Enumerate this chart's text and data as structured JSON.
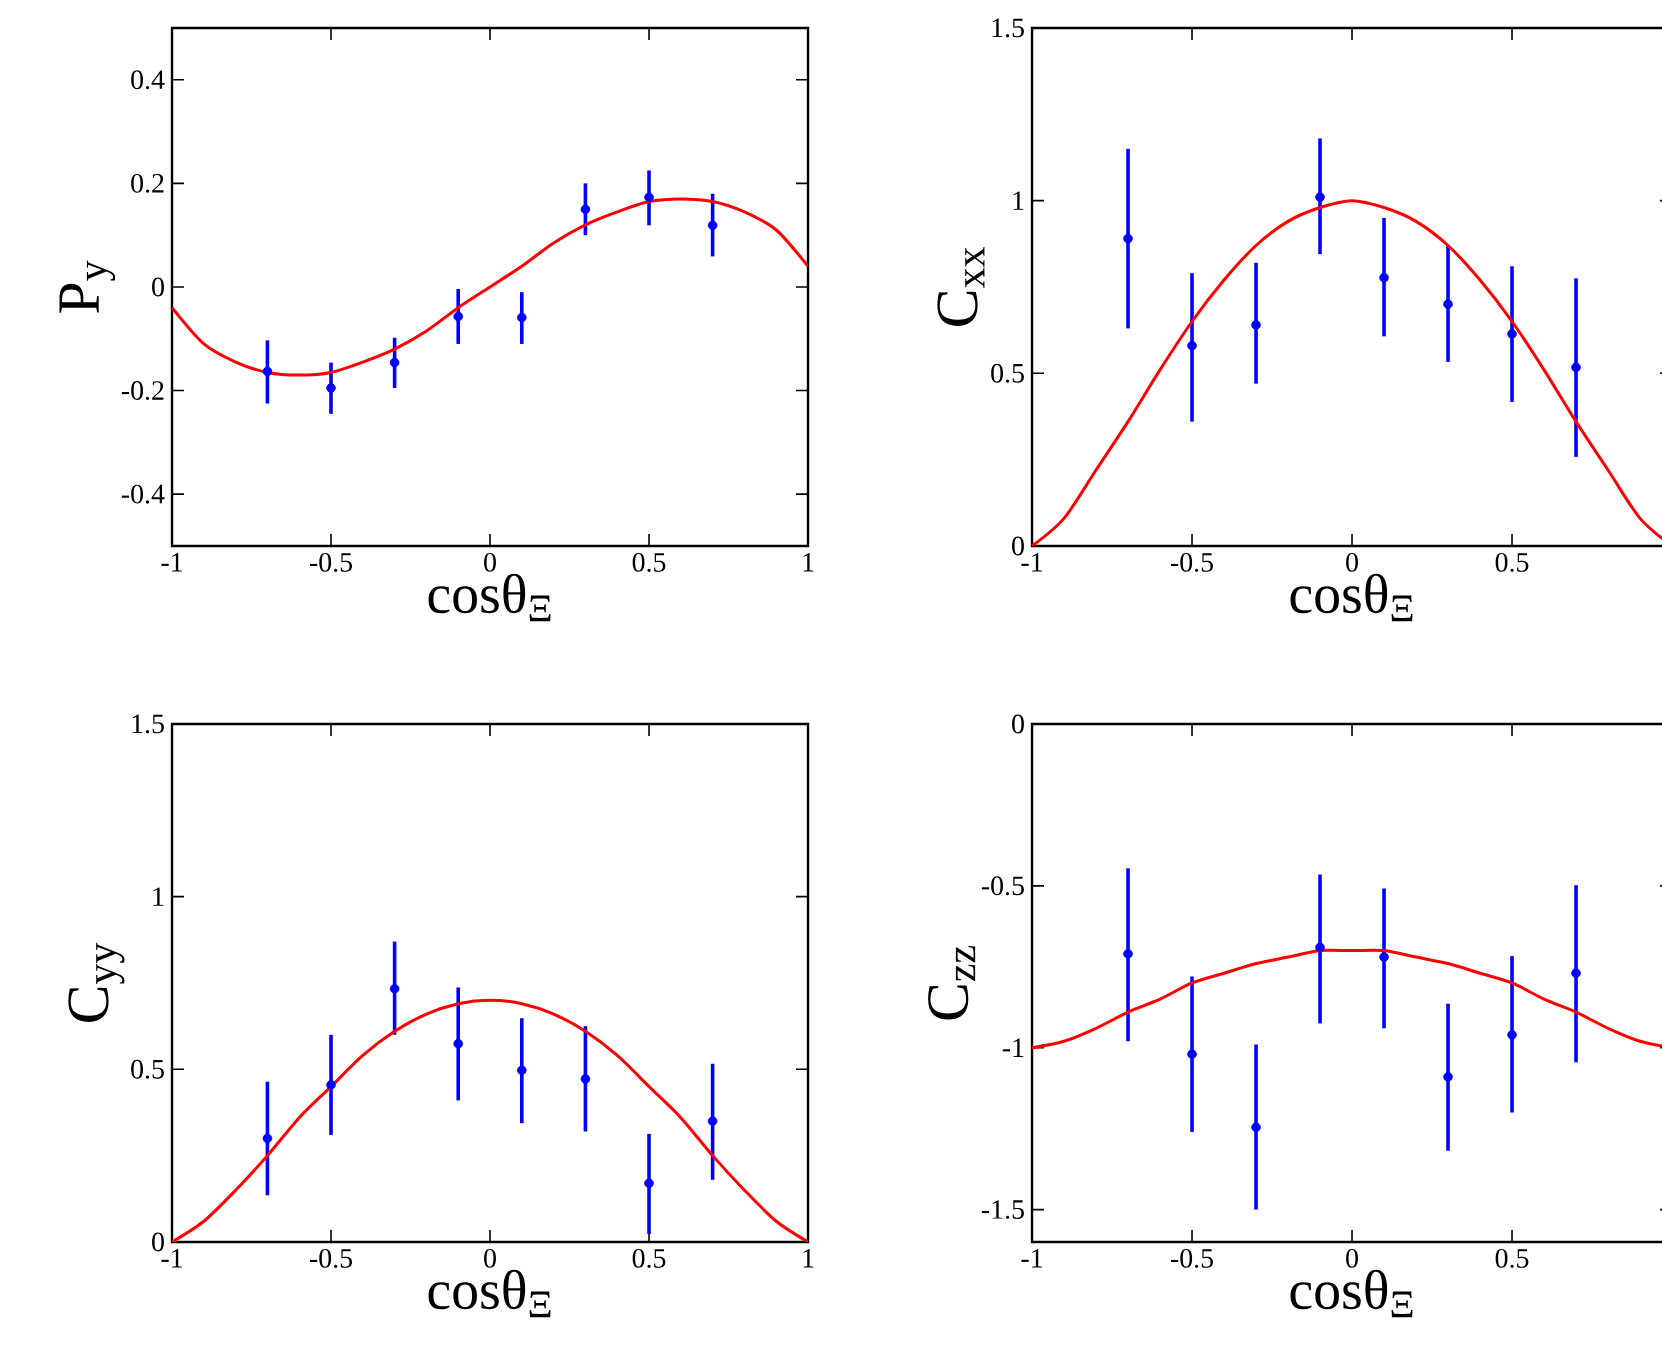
{
  "chart_data": [
    {
      "type": "scatter",
      "xlabel": "cosθ$_{Ξ}$",
      "ylabel": "P$_{y}$",
      "xlim": [
        -1,
        1
      ],
      "ylim": [
        -0.5,
        0.5
      ],
      "xticks": [
        -1,
        -0.5,
        0,
        0.5,
        1
      ],
      "yticks": [
        -0.4,
        -0.2,
        0,
        0.2,
        0.4
      ],
      "series": [
        {
          "color": "#0000ff",
          "marker": "circle",
          "x": [
            -0.7,
            -0.5,
            -0.3,
            -0.1,
            0.1,
            0.3,
            0.5,
            0.7
          ],
          "values": [
            -0.163,
            -0.195,
            -0.146,
            -0.057,
            -0.059,
            0.15,
            0.173,
            0.119
          ],
          "errors": [
            [
              -0.225,
              -0.103
            ],
            [
              -0.245,
              -0.146
            ],
            [
              -0.195,
              -0.098
            ],
            [
              -0.11,
              -0.004
            ],
            [
              -0.11,
              -0.01
            ],
            [
              0.1,
              0.2
            ],
            [
              0.119,
              0.225
            ],
            [
              0.059,
              0.18
            ]
          ]
        },
        {
          "type": "line",
          "color": "#ff0000",
          "marker": "none",
          "x": [
            -1,
            -0.9,
            -0.8,
            -0.7,
            -0.6,
            -0.5,
            -0.4,
            -0.3,
            -0.2,
            -0.1,
            0,
            0.1,
            0.2,
            0.3,
            0.4,
            0.5,
            0.6,
            0.7,
            0.8,
            0.9,
            1
          ],
          "values": [
            -0.04,
            -0.11,
            -0.145,
            -0.165,
            -0.17,
            -0.165,
            -0.145,
            -0.12,
            -0.085,
            -0.04,
            0,
            0.04,
            0.085,
            0.12,
            0.145,
            0.165,
            0.17,
            0.165,
            0.145,
            0.11,
            0.04
          ]
        }
      ]
    },
    {
      "type": "scatter",
      "xlabel": "cosθ$_{Ξ}$",
      "ylabel": "C$_{xx}$",
      "xlim": [
        -1,
        1
      ],
      "ylim": [
        0,
        1.5
      ],
      "xticks": [
        -1,
        -0.5,
        0,
        0.5
      ],
      "yticks": [
        0,
        0.5,
        1,
        1.5
      ],
      "series": [
        {
          "color": "#0000ff",
          "marker": "circle",
          "x": [
            -0.7,
            -0.5,
            -0.3,
            -0.1,
            0.1,
            0.3,
            0.5,
            0.7
          ],
          "values": [
            0.89,
            0.58,
            0.64,
            1.01,
            0.777,
            0.7,
            0.614,
            0.517
          ],
          "errors": [
            [
              0.63,
              1.15
            ],
            [
              0.36,
              0.79
            ],
            [
              0.47,
              0.82
            ],
            [
              0.845,
              1.18
            ],
            [
              0.607,
              0.95
            ],
            [
              0.533,
              0.87
            ],
            [
              0.417,
              0.81
            ],
            [
              0.258,
              0.775
            ]
          ]
        },
        {
          "type": "line",
          "color": "#ff0000",
          "marker": "none",
          "x": [
            -1,
            -0.9,
            -0.8,
            -0.7,
            -0.6,
            -0.5,
            -0.4,
            -0.3,
            -0.2,
            -0.1,
            0,
            0.1,
            0.2,
            0.3,
            0.4,
            0.5,
            0.6,
            0.7,
            0.8,
            0.9,
            1
          ],
          "values": [
            0,
            0.08,
            0.22,
            0.36,
            0.51,
            0.65,
            0.77,
            0.87,
            0.94,
            0.98,
            1,
            0.98,
            0.94,
            0.87,
            0.77,
            0.65,
            0.51,
            0.36,
            0.22,
            0.08,
            0
          ]
        }
      ]
    },
    {
      "type": "scatter",
      "xlabel": "cosθ$_{Ξ}$",
      "ylabel": "C$_{yy}$",
      "xlim": [
        -1,
        1
      ],
      "ylim": [
        0,
        1.5
      ],
      "xticks": [
        -1,
        -0.5,
        0,
        0.5,
        1
      ],
      "yticks": [
        0,
        0.5,
        1,
        1.5
      ],
      "series": [
        {
          "color": "#0000ff",
          "marker": "circle",
          "x": [
            -0.7,
            -0.5,
            -0.3,
            -0.1,
            0.1,
            0.3,
            0.5,
            0.7
          ],
          "values": [
            0.3,
            0.455,
            0.733,
            0.574,
            0.497,
            0.472,
            0.17,
            0.35
          ],
          "errors": [
            [
              0.135,
              0.464
            ],
            [
              0.31,
              0.6
            ],
            [
              0.6,
              0.87
            ],
            [
              0.41,
              0.737
            ],
            [
              0.344,
              0.648
            ],
            [
              0.32,
              0.625
            ],
            [
              0.023,
              0.313
            ],
            [
              0.18,
              0.516
            ]
          ]
        },
        {
          "type": "line",
          "color": "#ff0000",
          "marker": "none",
          "x": [
            -1,
            -0.9,
            -0.8,
            -0.7,
            -0.6,
            -0.5,
            -0.4,
            -0.3,
            -0.2,
            -0.1,
            0,
            0.1,
            0.2,
            0.3,
            0.4,
            0.5,
            0.6,
            0.7,
            0.8,
            0.9,
            1
          ],
          "values": [
            0,
            0.06,
            0.15,
            0.25,
            0.36,
            0.45,
            0.54,
            0.61,
            0.66,
            0.69,
            0.7,
            0.69,
            0.66,
            0.61,
            0.54,
            0.45,
            0.36,
            0.25,
            0.15,
            0.06,
            0
          ]
        }
      ]
    },
    {
      "type": "scatter",
      "xlabel": "cosθ$_{Ξ}$",
      "ylabel": "C$_{zz}$",
      "xlim": [
        -1,
        1
      ],
      "ylim": [
        -1.6,
        0
      ],
      "xticks": [
        -1,
        -0.5,
        0,
        0.5
      ],
      "yticks": [
        -1.5,
        -1,
        -0.5,
        0
      ],
      "series": [
        {
          "color": "#0000ff",
          "marker": "circle",
          "x": [
            -0.7,
            -0.5,
            -0.3,
            -0.1,
            0.1,
            0.3,
            0.5,
            0.7
          ],
          "values": [
            -0.71,
            -1.02,
            -1.246,
            -0.69,
            -0.72,
            -1.09,
            -0.96,
            -0.77
          ],
          "errors": [
            [
              -0.98,
              -0.446
            ],
            [
              -1.26,
              -0.78
            ],
            [
              -1.5,
              -0.99
            ],
            [
              -0.925,
              -0.465
            ],
            [
              -0.94,
              -0.508
            ],
            [
              -1.318,
              -0.864
            ],
            [
              -1.2,
              -0.717
            ],
            [
              -1.045,
              -0.498
            ]
          ]
        },
        {
          "type": "line",
          "color": "#ff0000",
          "marker": "none",
          "x": [
            -1,
            -0.9,
            -0.8,
            -0.7,
            -0.6,
            -0.5,
            -0.4,
            -0.3,
            -0.2,
            -0.1,
            0,
            0.1,
            0.2,
            0.3,
            0.4,
            0.5,
            0.6,
            0.7,
            0.8,
            0.9,
            1
          ],
          "values": [
            -1,
            -0.98,
            -0.94,
            -0.89,
            -0.85,
            -0.8,
            -0.77,
            -0.74,
            -0.72,
            -0.7,
            -0.7,
            -0.7,
            -0.72,
            -0.74,
            -0.77,
            -0.8,
            -0.85,
            -0.89,
            -0.94,
            -0.98,
            -1
          ]
        }
      ]
    }
  ]
}
